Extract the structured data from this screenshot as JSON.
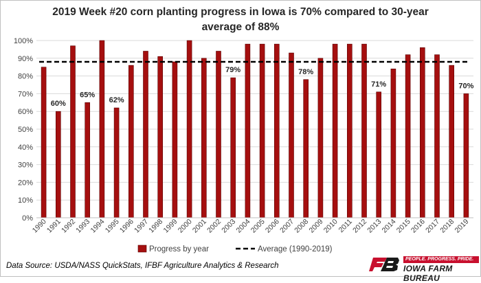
{
  "chart_data": {
    "type": "bar",
    "title_line1": "2019 Week #20 corn planting progress in Iowa is 70% compared to 30-year",
    "title_line2": "average of 88%",
    "categories": [
      "1990",
      "1991",
      "1992",
      "1993",
      "1994",
      "1995",
      "1996",
      "1997",
      "1998",
      "1999",
      "2000",
      "2001",
      "2002",
      "2003",
      "2004",
      "2005",
      "2006",
      "2007",
      "2008",
      "2009",
      "2010",
      "2011",
      "2012",
      "2013",
      "2014",
      "2015",
      "2016",
      "2017",
      "2018",
      "2019"
    ],
    "series": [
      {
        "name": "Progress by year",
        "values": [
          85,
          60,
          97,
          65,
          100,
          62,
          86,
          94,
          91,
          88,
          100,
          90,
          94,
          79,
          98,
          98,
          98,
          93,
          78,
          90,
          98,
          98,
          98,
          71,
          84,
          92,
          96,
          92,
          86,
          70
        ],
        "color": "#a50f0f"
      }
    ],
    "average": {
      "name": "Average (1990-2019)",
      "value": 88,
      "color": "#000000"
    },
    "data_labels": [
      {
        "category": "1991",
        "text": "60%"
      },
      {
        "category": "1993",
        "text": "65%"
      },
      {
        "category": "1995",
        "text": "62%"
      },
      {
        "category": "2003",
        "text": "79%"
      },
      {
        "category": "2008",
        "text": "78%"
      },
      {
        "category": "2013",
        "text": "71%"
      },
      {
        "category": "2019",
        "text": "70%"
      }
    ],
    "yticks": [
      "0%",
      "10%",
      "20%",
      "30%",
      "40%",
      "50%",
      "60%",
      "70%",
      "80%",
      "90%",
      "100%"
    ],
    "ylim": [
      0,
      100
    ],
    "grid": true,
    "legend_position": "bottom"
  },
  "footer": {
    "source": "Data Source: USDA/NASS QuickStats, IFBF Agriculture Analytics & Research",
    "tagline": "PEOPLE. PROGRESS. PRIDE.",
    "brand": "IOWA FARM BUREAU",
    "brand_color": "#c8102e"
  }
}
